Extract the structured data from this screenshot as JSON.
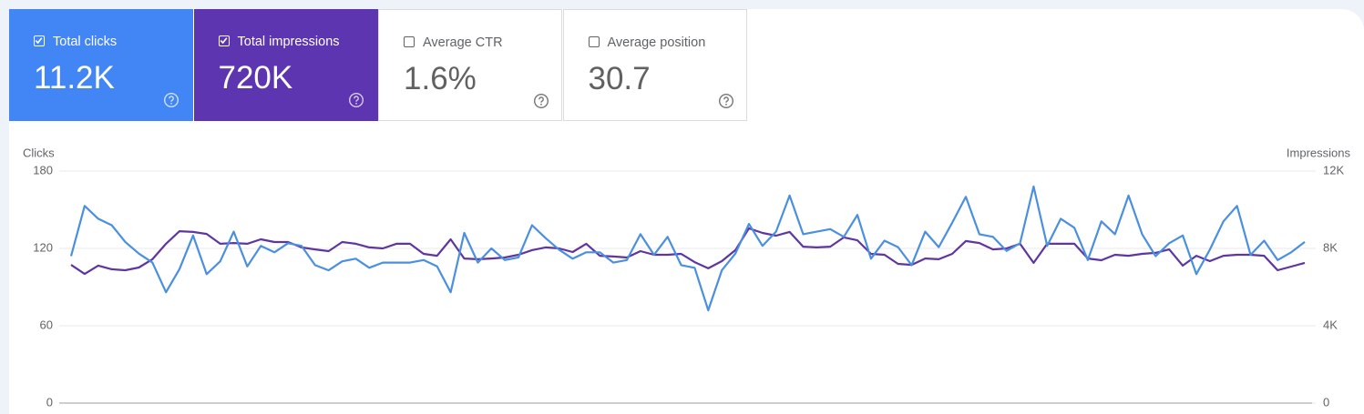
{
  "cards": [
    {
      "label": "Total clicks",
      "value": "11.2K",
      "checked": true,
      "color": "#4285f4"
    },
    {
      "label": "Total impressions",
      "value": "720K",
      "checked": true,
      "color": "#5e35b1"
    },
    {
      "label": "Average CTR",
      "value": "1.6%",
      "checked": false,
      "color": "#ffffff"
    },
    {
      "label": "Average position",
      "value": "30.7",
      "checked": false,
      "color": "#ffffff"
    }
  ],
  "chart_data": {
    "type": "line",
    "grid": true,
    "ylim": [
      0,
      180
    ],
    "yticks": [
      0,
      60,
      120,
      180
    ],
    "y2lim": [
      0,
      12000
    ],
    "y2ticks": [
      {
        "value": 0,
        "label": "0"
      },
      {
        "value": 4000,
        "label": "4K"
      },
      {
        "value": 8000,
        "label": "8K"
      },
      {
        "value": 12000,
        "label": "12K"
      }
    ],
    "series": [
      {
        "name": "Clicks",
        "color": "#4a8fe0",
        "values": [
          114,
          153,
          143,
          138,
          125,
          116,
          109,
          86,
          104,
          130,
          100,
          110,
          133,
          106,
          122,
          117,
          124,
          122,
          107,
          103,
          110,
          112,
          105,
          109,
          109,
          109,
          111,
          106,
          86,
          132,
          109,
          120,
          111,
          113,
          138,
          128,
          119,
          112,
          117,
          117,
          109,
          111,
          131,
          115,
          129,
          107,
          105,
          72,
          103,
          116,
          139,
          122,
          133,
          161,
          131,
          133,
          135,
          129,
          146,
          112,
          126,
          121,
          107,
          133,
          121,
          140,
          160,
          131,
          129,
          118,
          124,
          168,
          122,
          143,
          136,
          111,
          141,
          131,
          161,
          131,
          114,
          124,
          130,
          100,
          119,
          141,
          153,
          115,
          126,
          111,
          117,
          125
        ]
      },
      {
        "name": "Impressions",
        "color": "#5e35a1",
        "axis": "y2",
        "values": [
          7150,
          6680,
          7110,
          6920,
          6870,
          7010,
          7440,
          8240,
          8890,
          8850,
          8750,
          8240,
          8280,
          8240,
          8470,
          8330,
          8330,
          8050,
          7950,
          7860,
          8330,
          8240,
          8050,
          8000,
          8240,
          8240,
          7720,
          7620,
          8470,
          7480,
          7440,
          7480,
          7530,
          7670,
          7910,
          8050,
          8000,
          7810,
          8240,
          7620,
          7580,
          7530,
          7860,
          7670,
          7670,
          7720,
          7290,
          6970,
          7340,
          7910,
          9040,
          8800,
          8660,
          8850,
          8090,
          8050,
          8090,
          8570,
          8420,
          7720,
          7670,
          7200,
          7150,
          7480,
          7440,
          7720,
          8380,
          8280,
          7950,
          8000,
          8240,
          7250,
          8240,
          8240,
          8240,
          7480,
          7390,
          7670,
          7620,
          7720,
          7770,
          7950,
          7110,
          7620,
          7340,
          7620,
          7670,
          7670,
          7620,
          6870,
          7060,
          7250
        ]
      }
    ]
  }
}
